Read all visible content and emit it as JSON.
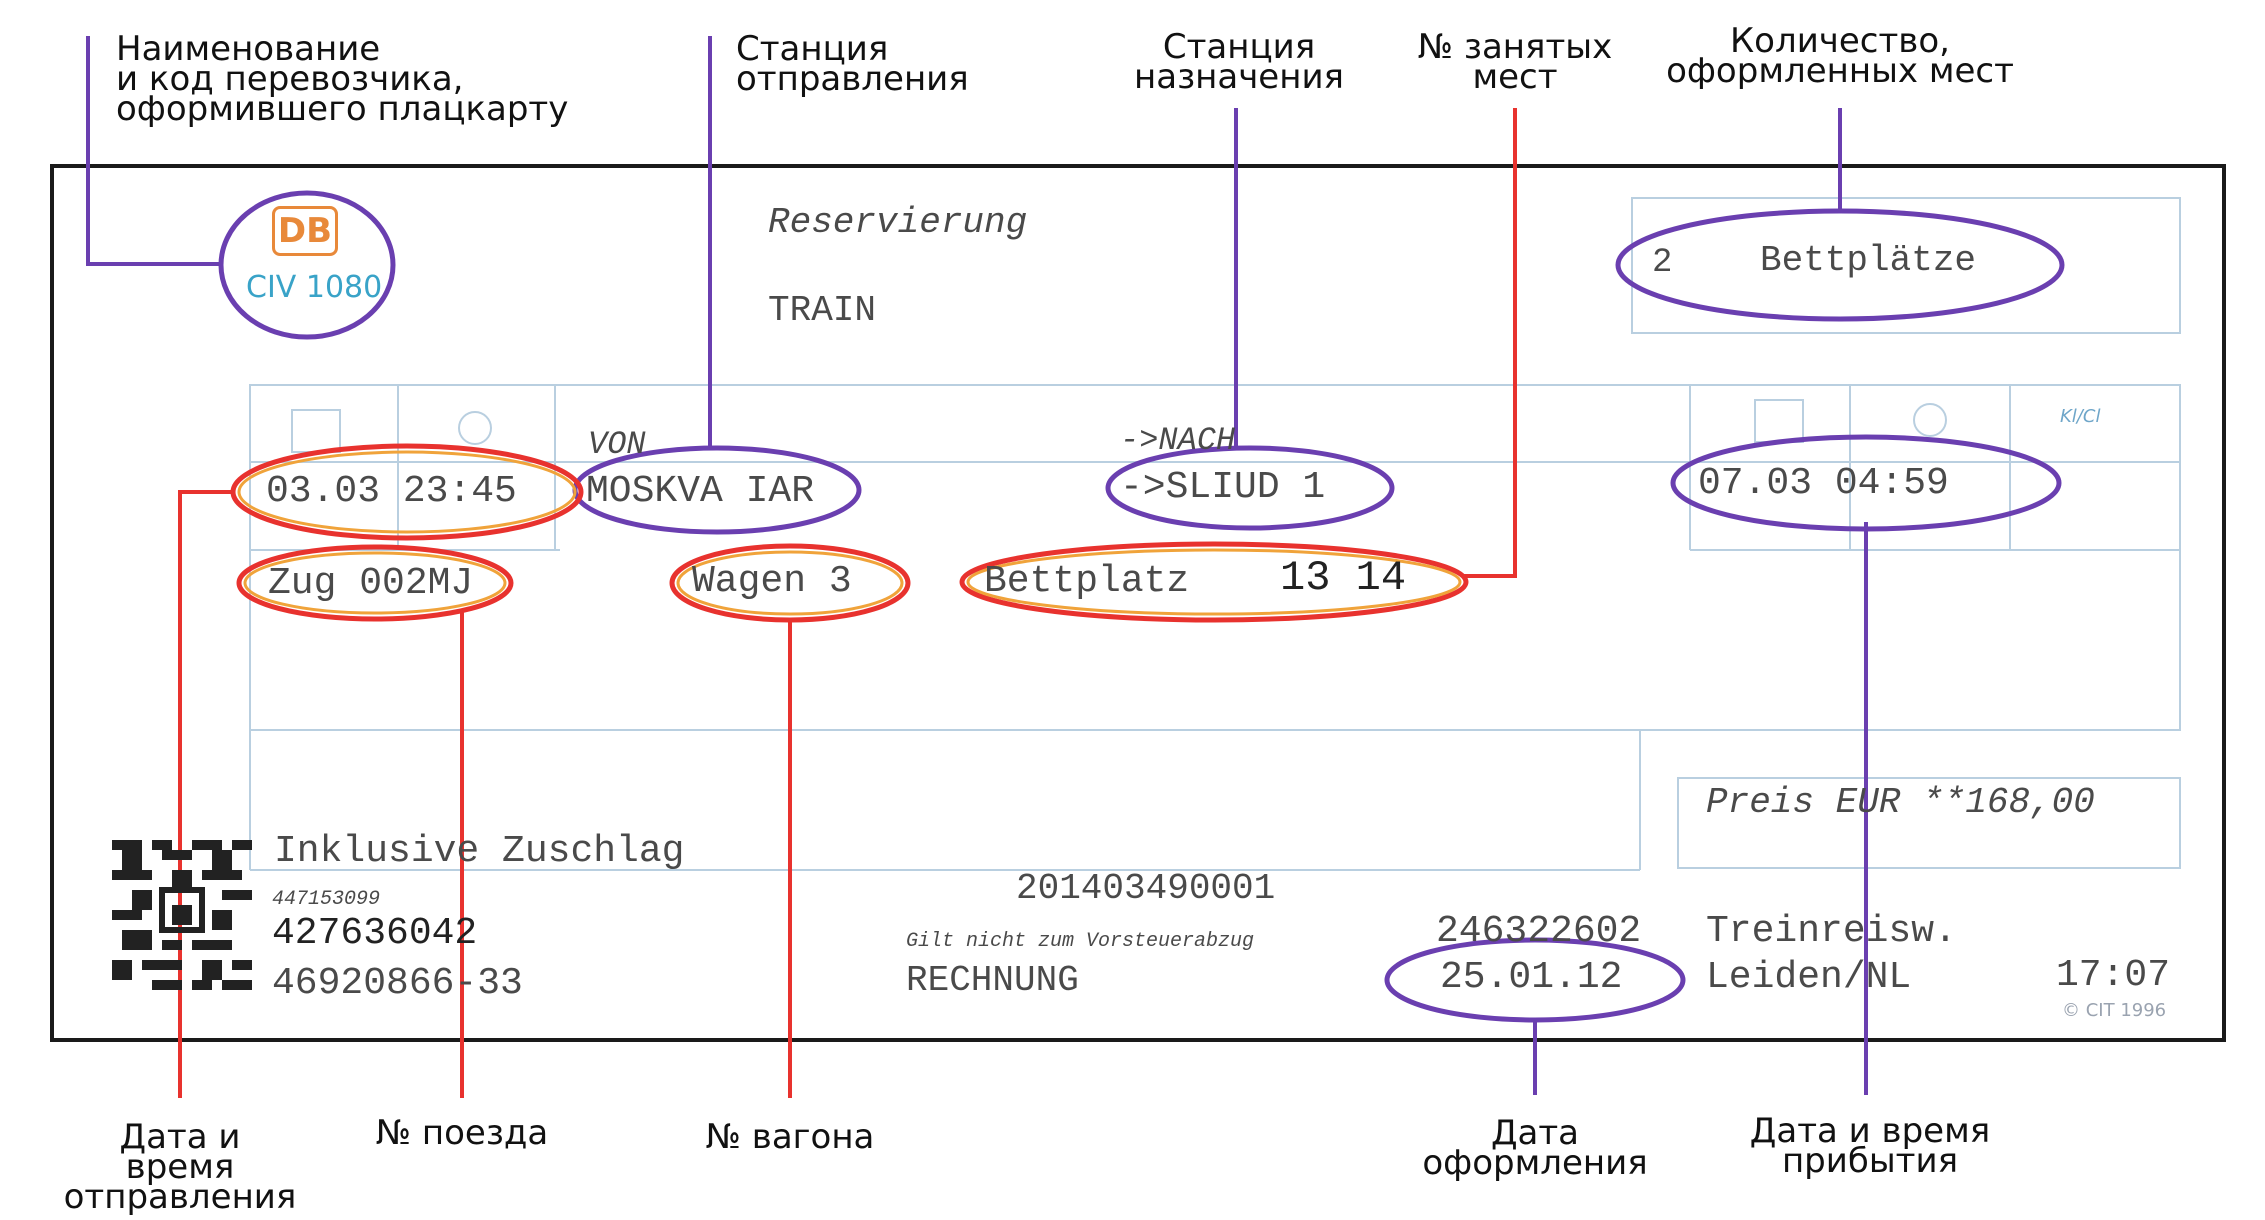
{
  "ticket": {
    "logo_db": "DB",
    "logo_code": "CIV 1080",
    "title": "Reservierung",
    "subtitle": "TRAIN",
    "places_count": "2",
    "places_unit": "Bettplätze",
    "von_label": "VON",
    "nach_label": "->NACH",
    "kl_label": "Kl/Cl",
    "departure_datetime": "03.03 23:45",
    "from_station": "MOSKVA IAR",
    "to_station": "->SLIUD 1",
    "arrival_datetime": "07.03  04:59",
    "train": "Zug 002MJ",
    "wagon": "Wagen 3",
    "berth_label": "Bettplatz",
    "berth_numbers": "13  14",
    "price": "Preis EUR **168,00",
    "surcharge": "Inklusive Zuschlag",
    "code_small": "447153099",
    "code_mid": "427636042",
    "code_long": "46920866-33",
    "ticket_number": "201403490001",
    "vat_note": "Gilt nicht zum Vorsteuerabzug",
    "invoice": "RECHNUNG",
    "agency_code": "246322602",
    "agency_name": "Treinreisw.",
    "issue_date": "25.01.12",
    "agency_city": "Leiden/NL",
    "issue_time": "17:07",
    "copyright": "© CIT 1996"
  },
  "annotations": {
    "carrier": "Наименование\nи код перевозчика,\nоформившего плацкарту",
    "departure_station": "Станция\nотправления",
    "destination_station": "Станция\nназначения",
    "seats_taken": "№ занятых\nмест",
    "seats_count": "Количество,\nоформленных мест",
    "departure_time": "Дата и время\nотправления",
    "train_number": "№ поезда",
    "wagon_number": "№ вагона",
    "issue_date": "Дата\nоформления",
    "arrival_time": "Дата и время\nприбытия"
  },
  "colors": {
    "purple": "#6a3fb0",
    "red": "#e8322e",
    "orange": "#f0a33a",
    "frame": "#1a1a1a",
    "grid": "#b9cfe0"
  }
}
